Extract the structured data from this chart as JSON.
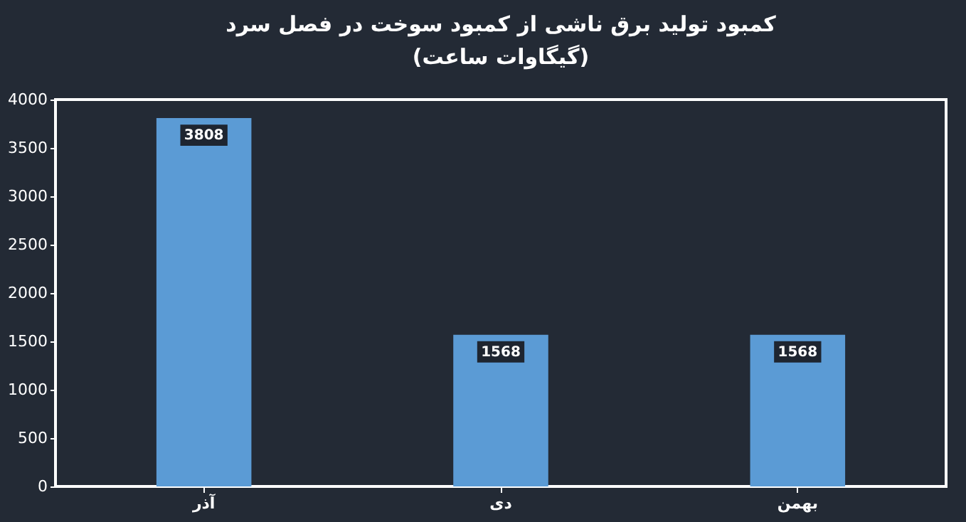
{
  "chart_data": {
    "type": "bar",
    "title": "کمبود تولید برق ناشی از کمبود سوخت در فصل سرد",
    "subtitle": "(گیگاوات ساعت)",
    "categories": [
      "آذر",
      "دی",
      "بهمن"
    ],
    "values": [
      3808,
      1568,
      1568
    ],
    "color": "#5b9bd5",
    "ylim": [
      0,
      4000
    ],
    "yticks": [
      0,
      500,
      1000,
      1500,
      2000,
      2500,
      3000,
      3500,
      4000
    ],
    "grid": false,
    "data_labels": true
  }
}
